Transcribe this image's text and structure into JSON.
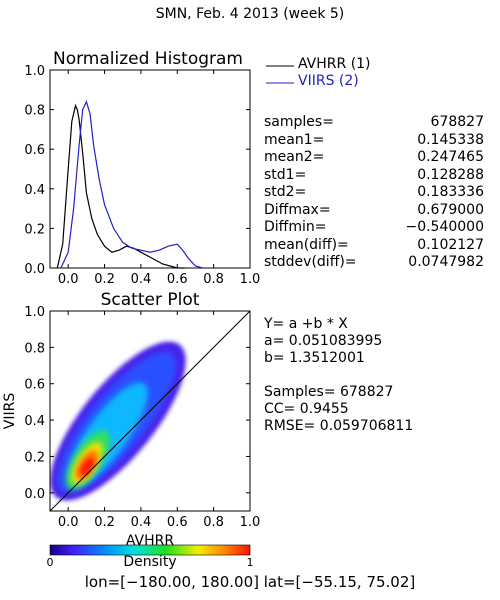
{
  "title": "SMN,  Feb. 4 2013 (week 5)",
  "legend": {
    "series1": "AVHRR (1)",
    "series2": "VIIRS (2)",
    "color1": "#000000",
    "color2": "#2020c8"
  },
  "stats": [
    {
      "label": "samples=",
      "value": "678827"
    },
    {
      "label": "mean1=",
      "value": "0.145338"
    },
    {
      "label": "mean2=",
      "value": "0.247465"
    },
    {
      "label": "std1=",
      "value": "0.128288"
    },
    {
      "label": "std2=",
      "value": "0.183336"
    },
    {
      "label": "Diffmax=",
      "value": "0.679000"
    },
    {
      "label": "Diffmin=",
      "value": "−0.540000"
    },
    {
      "label": "mean(diff)=",
      "value": "0.102127"
    },
    {
      "label": "stddev(diff)=",
      "value": "0.0747982"
    }
  ],
  "regression": {
    "equation": "Y=  a  +b  *  X",
    "a_line": "a=  0.051083995",
    "b_line": "b=  1.3512001",
    "samples_line": "Samples=  678827",
    "cc_line": "CC=    0.9455",
    "rmse_line": "RMSE=  0.059706811"
  },
  "colorbar": {
    "label": "Density",
    "min_label": "0",
    "max_label": "1"
  },
  "footer": "lon=[−180.00,  180.00]  lat=[−55.15,  75.02]",
  "chart_data": [
    {
      "type": "line",
      "title": "Normalized Histogram",
      "xlabel": "",
      "ylabel": "",
      "xlim": [
        -0.1,
        1.0
      ],
      "ylim": [
        0.0,
        1.0
      ],
      "xticks": [
        "0.0",
        "0.2",
        "0.4",
        "0.6",
        "0.8",
        "1.0"
      ],
      "yticks": [
        "0.0",
        "0.2",
        "0.4",
        "0.6",
        "0.8",
        "1.0"
      ],
      "series": [
        {
          "name": "AVHRR (1)",
          "color": "#000000",
          "x": [
            -0.06,
            -0.03,
            0.0,
            0.02,
            0.04,
            0.05,
            0.06,
            0.08,
            0.1,
            0.13,
            0.16,
            0.2,
            0.24,
            0.28,
            0.32,
            0.36,
            0.4,
            0.44,
            0.48,
            0.52,
            0.56,
            0.6,
            0.64
          ],
          "y": [
            0.0,
            0.12,
            0.5,
            0.74,
            0.82,
            0.8,
            0.75,
            0.58,
            0.38,
            0.25,
            0.17,
            0.11,
            0.08,
            0.09,
            0.11,
            0.1,
            0.08,
            0.06,
            0.04,
            0.02,
            0.01,
            0.0,
            0.0
          ]
        },
        {
          "name": "VIIRS (2)",
          "color": "#2020c8",
          "x": [
            -0.04,
            0.0,
            0.03,
            0.06,
            0.08,
            0.1,
            0.12,
            0.14,
            0.17,
            0.2,
            0.25,
            0.3,
            0.35,
            0.4,
            0.45,
            0.5,
            0.55,
            0.6,
            0.63,
            0.66,
            0.7,
            0.74
          ],
          "y": [
            0.0,
            0.08,
            0.3,
            0.62,
            0.8,
            0.84,
            0.78,
            0.62,
            0.45,
            0.32,
            0.2,
            0.13,
            0.1,
            0.09,
            0.08,
            0.09,
            0.11,
            0.12,
            0.09,
            0.05,
            0.01,
            0.0
          ]
        }
      ]
    },
    {
      "type": "heatmap",
      "title": "Scatter Plot",
      "xlabel": "AVHRR",
      "ylabel": "VIIRS",
      "xlim": [
        -0.1,
        1.0
      ],
      "ylim": [
        -0.1,
        1.0
      ],
      "xticks": [
        "0.0",
        "0.2",
        "0.4",
        "0.6",
        "0.8",
        "1.0"
      ],
      "yticks": [
        "0.0",
        "0.2",
        "0.4",
        "0.6",
        "0.8",
        "1.0"
      ],
      "one_to_one_line": true,
      "density_axis": {
        "label": "Density",
        "range": [
          0,
          1
        ]
      }
    }
  ]
}
